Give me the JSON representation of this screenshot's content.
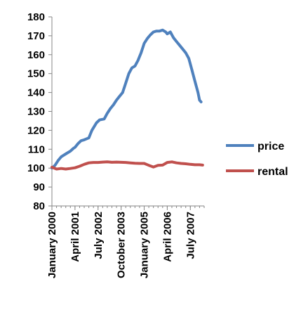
{
  "chart_data": {
    "type": "line",
    "title": "",
    "xlabel": "",
    "ylabel": "",
    "ylim": [
      80,
      180
    ],
    "yticks": [
      80,
      90,
      100,
      110,
      120,
      130,
      140,
      150,
      160,
      170,
      180
    ],
    "x_tick_labels": [
      "January 2000",
      "April 2001",
      "July 2002",
      "October 2003",
      "January 2005",
      "April 2006",
      "July 2007"
    ],
    "x_tick_months": [
      0,
      15,
      30,
      45,
      60,
      75,
      90
    ],
    "x_range_months": [
      0,
      99
    ],
    "grid": false,
    "legend_position": "right",
    "series": [
      {
        "name": "price",
        "color": "#4f81bd",
        "points": [
          [
            0,
            100
          ],
          [
            2,
            101.5
          ],
          [
            4,
            104
          ],
          [
            6,
            106
          ],
          [
            9,
            107.5
          ],
          [
            12,
            109
          ],
          [
            14,
            110.5
          ],
          [
            15,
            111
          ],
          [
            17,
            113
          ],
          [
            19,
            114.5
          ],
          [
            21,
            115
          ],
          [
            24,
            116
          ],
          [
            26,
            120
          ],
          [
            29,
            124
          ],
          [
            31,
            125.5
          ],
          [
            34,
            126
          ],
          [
            36,
            129
          ],
          [
            38,
            131.5
          ],
          [
            40,
            133.5
          ],
          [
            42,
            136
          ],
          [
            44,
            138
          ],
          [
            46,
            140
          ],
          [
            48,
            145
          ],
          [
            50,
            150
          ],
          [
            52,
            153
          ],
          [
            54,
            154
          ],
          [
            56,
            157
          ],
          [
            58,
            161
          ],
          [
            60,
            166
          ],
          [
            62,
            168.5
          ],
          [
            64,
            170.5
          ],
          [
            66,
            172
          ],
          [
            68,
            172.5
          ],
          [
            70,
            172.5
          ],
          [
            72,
            173
          ],
          [
            74,
            172
          ],
          [
            75,
            171
          ],
          [
            77,
            172
          ],
          [
            79,
            169
          ],
          [
            81,
            167
          ],
          [
            83,
            165
          ],
          [
            85,
            163
          ],
          [
            87,
            161
          ],
          [
            89,
            158
          ],
          [
            91,
            152
          ],
          [
            93,
            146
          ],
          [
            95,
            140
          ],
          [
            96,
            136
          ],
          [
            97,
            135
          ]
        ]
      },
      {
        "name": "rental",
        "color": "#c0504d",
        "points": [
          [
            0,
            100.5
          ],
          [
            3,
            99.5
          ],
          [
            6,
            99.8
          ],
          [
            9,
            99.5
          ],
          [
            12,
            99.8
          ],
          [
            15,
            100.2
          ],
          [
            18,
            101
          ],
          [
            21,
            102
          ],
          [
            24,
            102.8
          ],
          [
            27,
            103
          ],
          [
            30,
            103
          ],
          [
            33,
            103.2
          ],
          [
            36,
            103.3
          ],
          [
            39,
            103.1
          ],
          [
            42,
            103.2
          ],
          [
            45,
            103.1
          ],
          [
            48,
            103
          ],
          [
            51,
            102.8
          ],
          [
            54,
            102.6
          ],
          [
            57,
            102.5
          ],
          [
            60,
            102.5
          ],
          [
            63,
            101.5
          ],
          [
            66,
            100.6
          ],
          [
            69,
            101.5
          ],
          [
            72,
            101.6
          ],
          [
            75,
            103
          ],
          [
            78,
            103.3
          ],
          [
            81,
            102.8
          ],
          [
            84,
            102.5
          ],
          [
            87,
            102.3
          ],
          [
            90,
            102
          ],
          [
            93,
            101.8
          ],
          [
            96,
            101.8
          ],
          [
            98,
            101.6
          ]
        ]
      }
    ]
  }
}
